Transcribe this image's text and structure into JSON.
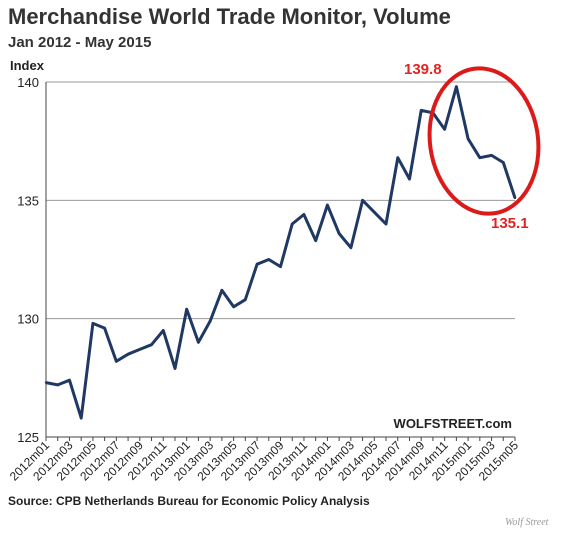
{
  "header": {
    "title": "Merchandise World Trade Monitor, Volume",
    "subtitle": "Jan 2012 - May 2015"
  },
  "footer": {
    "source": "Source: CPB Netherlands Bureau for Economic Policy Analysis",
    "credit": "Wolf Street"
  },
  "chart_data": {
    "type": "line",
    "title": "Merchandise World Trade Monitor, Volume",
    "subtitle": "Jan 2012 - May 2015",
    "xlabel": "",
    "ylabel": "Index",
    "ylim": [
      125,
      140
    ],
    "yticks": [
      125,
      130,
      135,
      140
    ],
    "grid": true,
    "x": [
      "2012m01",
      "2012m02",
      "2012m03",
      "2012m04",
      "2012m05",
      "2012m06",
      "2012m07",
      "2012m08",
      "2012m09",
      "2012m10",
      "2012m11",
      "2012m12",
      "2013m01",
      "2013m02",
      "2013m03",
      "2013m04",
      "2013m05",
      "2013m06",
      "2013m07",
      "2013m08",
      "2013m09",
      "2013m10",
      "2013m11",
      "2013m12",
      "2014m01",
      "2014m02",
      "2014m03",
      "2014m04",
      "2014m05",
      "2014m06",
      "2014m07",
      "2014m08",
      "2014m09",
      "2014m10",
      "2014m11",
      "2014m12",
      "2015m01",
      "2015m02",
      "2015m03",
      "2015m04",
      "2015m05"
    ],
    "xtick_labels": [
      "2012m01",
      "2012m03",
      "2012m05",
      "2012m07",
      "2012m09",
      "2012m11",
      "2013m01",
      "2013m03",
      "2013m05",
      "2013m07",
      "2013m09",
      "2013m11",
      "2014m01",
      "2014m03",
      "2014m05",
      "2014m07",
      "2014m09",
      "2014m11",
      "2015m01",
      "2015m03",
      "2015m05"
    ],
    "series": [
      {
        "values": [
          127.3,
          127.2,
          127.4,
          125.8,
          129.8,
          129.6,
          128.2,
          128.5,
          128.7,
          128.9,
          129.5,
          127.9,
          130.4,
          129.0,
          129.9,
          131.2,
          130.5,
          130.8,
          132.3,
          132.5,
          132.2,
          134.0,
          134.4,
          133.3,
          134.8,
          133.6,
          133.0,
          135.0,
          134.5,
          134.0,
          136.8,
          135.9,
          138.8,
          138.7,
          138.0,
          139.8,
          137.6,
          136.8,
          136.9,
          136.6,
          135.1
        ],
        "color": "#1f3864"
      }
    ],
    "annotations": [
      {
        "text": "139.8",
        "color": "#e32222"
      },
      {
        "text": "135.1",
        "color": "#e32222"
      }
    ],
    "watermark": "WOLFSTREET.com",
    "highlight_color": "#dd1a1a"
  }
}
